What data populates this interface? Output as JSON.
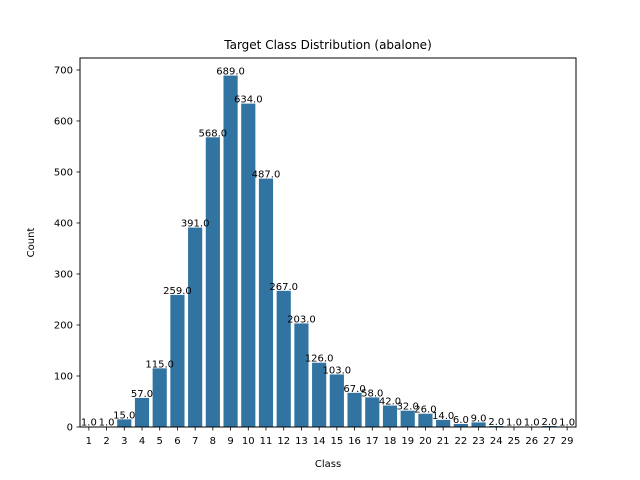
{
  "chart_data": {
    "type": "bar",
    "title": "Target Class Distribution (abalone)",
    "xlabel": "Class",
    "ylabel": "Count",
    "categories": [
      "1",
      "2",
      "3",
      "4",
      "5",
      "6",
      "7",
      "8",
      "9",
      "10",
      "11",
      "12",
      "13",
      "14",
      "15",
      "16",
      "17",
      "18",
      "19",
      "20",
      "21",
      "22",
      "23",
      "24",
      "25",
      "26",
      "27",
      "29"
    ],
    "values": [
      1,
      1,
      15,
      57,
      115,
      259,
      391,
      568,
      689,
      634,
      487,
      267,
      203,
      126,
      103,
      67,
      58,
      42,
      32,
      26,
      14,
      6,
      9,
      2,
      1,
      1,
      2,
      1
    ],
    "data_labels": [
      "1.0",
      "1.0",
      "15.0",
      "57.0",
      "115.0",
      "259.0",
      "391.0",
      "568.0",
      "689.0",
      "634.0",
      "487.0",
      "267.0",
      "203.0",
      "126.0",
      "103.0",
      "67.0",
      "58.0",
      "42.0",
      "32.0",
      "26.0",
      "14.0",
      "6.0",
      "9.0",
      "2.0",
      "1.0",
      "1.0",
      "2.0",
      "1.0"
    ],
    "yticks": [
      0,
      100,
      200,
      300,
      400,
      500,
      600,
      700
    ],
    "ylim": [
      0,
      723.45
    ],
    "grid": false,
    "bar_color": "#3274a1"
  }
}
